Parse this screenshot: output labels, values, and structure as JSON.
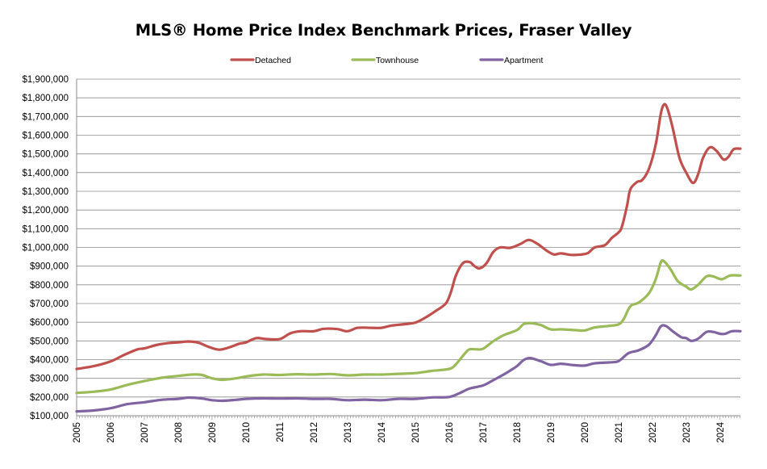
{
  "chart_data": {
    "type": "line",
    "title": "MLS® Home Price Index Benchmark Prices, Fraser Valley",
    "xlabel": "",
    "ylabel": "",
    "ylim": [
      100000,
      1900000
    ],
    "xlim": [
      2005,
      2024.6
    ],
    "grid": true,
    "legend_position": "top",
    "y_ticks": [
      100000,
      200000,
      300000,
      400000,
      500000,
      600000,
      700000,
      800000,
      900000,
      1000000,
      1100000,
      1200000,
      1300000,
      1400000,
      1500000,
      1600000,
      1700000,
      1800000,
      1900000
    ],
    "y_tick_labels": [
      "$100,000",
      "$200,000",
      "$300,000",
      "$400,000",
      "$500,000",
      "$600,000",
      "$700,000",
      "$800,000",
      "$900,000",
      "$1,000,000",
      "$1,100,000",
      "$1,200,000",
      "$1,300,000",
      "$1,400,000",
      "$1,500,000",
      "$1,600,000",
      "$1,700,000",
      "$1,800,000",
      "$1,900,000"
    ],
    "x_ticks": [
      2005,
      2006,
      2007,
      2008,
      2009,
      2010,
      2011,
      2012,
      2013,
      2014,
      2015,
      2016,
      2017,
      2018,
      2019,
      2020,
      2021,
      2022,
      2023,
      2024
    ],
    "x_tick_labels": [
      "2005",
      "2006",
      "2007",
      "2008",
      "2009",
      "2010",
      "2011",
      "2012",
      "2013",
      "2014",
      "2015",
      "2016",
      "2017",
      "2018",
      "2019",
      "2020",
      "2021",
      "2022",
      "2023",
      "2024"
    ],
    "series": [
      {
        "name": "Detached",
        "color": "#c0504d",
        "points": [
          [
            2005.0,
            350000
          ],
          [
            2005.5,
            365000
          ],
          [
            2006.0,
            390000
          ],
          [
            2006.4,
            425000
          ],
          [
            2006.8,
            455000
          ],
          [
            2007.0,
            460000
          ],
          [
            2007.4,
            480000
          ],
          [
            2007.8,
            490000
          ],
          [
            2008.0,
            492000
          ],
          [
            2008.3,
            497000
          ],
          [
            2008.6,
            490000
          ],
          [
            2008.9,
            468000
          ],
          [
            2009.2,
            453000
          ],
          [
            2009.5,
            465000
          ],
          [
            2009.8,
            485000
          ],
          [
            2010.0,
            492000
          ],
          [
            2010.3,
            515000
          ],
          [
            2010.6,
            510000
          ],
          [
            2011.0,
            510000
          ],
          [
            2011.3,
            540000
          ],
          [
            2011.6,
            552000
          ],
          [
            2012.0,
            552000
          ],
          [
            2012.3,
            565000
          ],
          [
            2012.7,
            563000
          ],
          [
            2013.0,
            552000
          ],
          [
            2013.3,
            570000
          ],
          [
            2013.7,
            570000
          ],
          [
            2014.0,
            570000
          ],
          [
            2014.3,
            582000
          ],
          [
            2014.7,
            590000
          ],
          [
            2015.0,
            598000
          ],
          [
            2015.3,
            625000
          ],
          [
            2015.6,
            660000
          ],
          [
            2015.9,
            700000
          ],
          [
            2016.05,
            760000
          ],
          [
            2016.2,
            850000
          ],
          [
            2016.4,
            915000
          ],
          [
            2016.6,
            922000
          ],
          [
            2016.75,
            900000
          ],
          [
            2016.9,
            888000
          ],
          [
            2017.1,
            915000
          ],
          [
            2017.3,
            975000
          ],
          [
            2017.5,
            1000000
          ],
          [
            2017.8,
            998000
          ],
          [
            2018.1,
            1018000
          ],
          [
            2018.35,
            1040000
          ],
          [
            2018.6,
            1020000
          ],
          [
            2018.9,
            980000
          ],
          [
            2019.1,
            962000
          ],
          [
            2019.3,
            968000
          ],
          [
            2019.6,
            960000
          ],
          [
            2019.9,
            962000
          ],
          [
            2020.1,
            970000
          ],
          [
            2020.3,
            1000000
          ],
          [
            2020.6,
            1012000
          ],
          [
            2020.8,
            1050000
          ],
          [
            2021.0,
            1080000
          ],
          [
            2021.1,
            1110000
          ],
          [
            2021.25,
            1220000
          ],
          [
            2021.35,
            1310000
          ],
          [
            2021.55,
            1350000
          ],
          [
            2021.7,
            1360000
          ],
          [
            2021.9,
            1420000
          ],
          [
            2022.1,
            1550000
          ],
          [
            2022.25,
            1715000
          ],
          [
            2022.35,
            1765000
          ],
          [
            2022.45,
            1740000
          ],
          [
            2022.6,
            1640000
          ],
          [
            2022.8,
            1480000
          ],
          [
            2023.0,
            1400000
          ],
          [
            2023.2,
            1345000
          ],
          [
            2023.35,
            1390000
          ],
          [
            2023.5,
            1480000
          ],
          [
            2023.7,
            1535000
          ],
          [
            2023.9,
            1515000
          ],
          [
            2024.1,
            1470000
          ],
          [
            2024.25,
            1485000
          ],
          [
            2024.4,
            1525000
          ],
          [
            2024.6,
            1528000
          ]
        ]
      },
      {
        "name": "Townhouse",
        "color": "#9bbb59",
        "points": [
          [
            2005.0,
            222000
          ],
          [
            2005.5,
            228000
          ],
          [
            2006.0,
            240000
          ],
          [
            2006.5,
            265000
          ],
          [
            2007.0,
            285000
          ],
          [
            2007.5,
            303000
          ],
          [
            2008.0,
            313000
          ],
          [
            2008.4,
            320000
          ],
          [
            2008.7,
            318000
          ],
          [
            2009.0,
            300000
          ],
          [
            2009.3,
            292000
          ],
          [
            2009.7,
            300000
          ],
          [
            2010.0,
            310000
          ],
          [
            2010.5,
            320000
          ],
          [
            2011.0,
            318000
          ],
          [
            2011.5,
            322000
          ],
          [
            2012.0,
            320000
          ],
          [
            2012.5,
            323000
          ],
          [
            2013.0,
            316000
          ],
          [
            2013.5,
            320000
          ],
          [
            2014.0,
            320000
          ],
          [
            2014.5,
            324000
          ],
          [
            2015.0,
            328000
          ],
          [
            2015.5,
            340000
          ],
          [
            2016.0,
            350000
          ],
          [
            2016.2,
            375000
          ],
          [
            2016.45,
            430000
          ],
          [
            2016.6,
            455000
          ],
          [
            2016.8,
            455000
          ],
          [
            2017.0,
            458000
          ],
          [
            2017.3,
            498000
          ],
          [
            2017.6,
            530000
          ],
          [
            2018.0,
            558000
          ],
          [
            2018.2,
            590000
          ],
          [
            2018.4,
            595000
          ],
          [
            2018.7,
            585000
          ],
          [
            2019.0,
            562000
          ],
          [
            2019.3,
            562000
          ],
          [
            2019.7,
            558000
          ],
          [
            2020.0,
            556000
          ],
          [
            2020.3,
            572000
          ],
          [
            2020.7,
            580000
          ],
          [
            2021.0,
            588000
          ],
          [
            2021.15,
            615000
          ],
          [
            2021.35,
            685000
          ],
          [
            2021.6,
            705000
          ],
          [
            2021.9,
            755000
          ],
          [
            2022.1,
            830000
          ],
          [
            2022.25,
            920000
          ],
          [
            2022.35,
            925000
          ],
          [
            2022.55,
            880000
          ],
          [
            2022.75,
            820000
          ],
          [
            2023.0,
            790000
          ],
          [
            2023.15,
            775000
          ],
          [
            2023.35,
            800000
          ],
          [
            2023.6,
            845000
          ],
          [
            2023.8,
            845000
          ],
          [
            2024.05,
            830000
          ],
          [
            2024.3,
            850000
          ],
          [
            2024.6,
            850000
          ]
        ]
      },
      {
        "name": "Apartment",
        "color": "#8064a2",
        "points": [
          [
            2005.0,
            123000
          ],
          [
            2005.5,
            128000
          ],
          [
            2006.0,
            140000
          ],
          [
            2006.5,
            162000
          ],
          [
            2007.0,
            172000
          ],
          [
            2007.5,
            185000
          ],
          [
            2008.0,
            190000
          ],
          [
            2008.3,
            197000
          ],
          [
            2008.7,
            192000
          ],
          [
            2009.0,
            183000
          ],
          [
            2009.3,
            180000
          ],
          [
            2009.7,
            185000
          ],
          [
            2010.0,
            190000
          ],
          [
            2010.5,
            193000
          ],
          [
            2011.0,
            192000
          ],
          [
            2011.5,
            193000
          ],
          [
            2012.0,
            190000
          ],
          [
            2012.5,
            190000
          ],
          [
            2013.0,
            183000
          ],
          [
            2013.5,
            186000
          ],
          [
            2014.0,
            183000
          ],
          [
            2014.5,
            190000
          ],
          [
            2015.0,
            190000
          ],
          [
            2015.5,
            198000
          ],
          [
            2016.0,
            200000
          ],
          [
            2016.3,
            220000
          ],
          [
            2016.6,
            245000
          ],
          [
            2017.0,
            262000
          ],
          [
            2017.3,
            290000
          ],
          [
            2017.7,
            330000
          ],
          [
            2018.0,
            365000
          ],
          [
            2018.2,
            398000
          ],
          [
            2018.4,
            408000
          ],
          [
            2018.7,
            392000
          ],
          [
            2019.0,
            372000
          ],
          [
            2019.3,
            378000
          ],
          [
            2019.7,
            370000
          ],
          [
            2020.0,
            368000
          ],
          [
            2020.3,
            380000
          ],
          [
            2020.7,
            385000
          ],
          [
            2021.0,
            392000
          ],
          [
            2021.3,
            435000
          ],
          [
            2021.6,
            450000
          ],
          [
            2021.9,
            480000
          ],
          [
            2022.1,
            530000
          ],
          [
            2022.25,
            578000
          ],
          [
            2022.4,
            580000
          ],
          [
            2022.6,
            552000
          ],
          [
            2022.85,
            520000
          ],
          [
            2023.0,
            515000
          ],
          [
            2023.15,
            500000
          ],
          [
            2023.35,
            512000
          ],
          [
            2023.6,
            548000
          ],
          [
            2023.8,
            548000
          ],
          [
            2024.0,
            538000
          ],
          [
            2024.15,
            538000
          ],
          [
            2024.35,
            552000
          ],
          [
            2024.6,
            552000
          ]
        ]
      }
    ]
  }
}
